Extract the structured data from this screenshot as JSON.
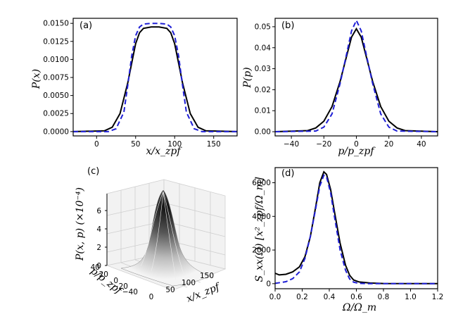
{
  "chart_data": [
    {
      "panel": "(a)",
      "type": "line",
      "xlabel": "x/x_zpf",
      "ylabel": "P(x)",
      "xlim": [
        -30,
        180
      ],
      "ylim": [
        -0.0006,
        0.0157
      ],
      "xticks": [
        "0",
        "50",
        "100",
        "150"
      ],
      "yticks": [
        "0.0000",
        "0.0025",
        "0.0050",
        "0.0075",
        "0.0100",
        "0.0125",
        "0.0150"
      ],
      "series": [
        {
          "style": "solid-black",
          "x": [
            -30,
            10,
            20,
            30,
            40,
            45,
            50,
            55,
            60,
            70,
            80,
            90,
            95,
            100,
            105,
            110,
            120,
            130,
            140,
            180
          ],
          "y": [
            0,
            0.0001,
            0.0006,
            0.0025,
            0.0068,
            0.0095,
            0.0122,
            0.0137,
            0.0143,
            0.0145,
            0.0145,
            0.0143,
            0.0137,
            0.0122,
            0.0095,
            0.0068,
            0.0025,
            0.0006,
            0.0001,
            0
          ]
        },
        {
          "style": "dashed-blue",
          "x": [
            -30,
            15,
            25,
            35,
            40,
            45,
            50,
            55,
            60,
            70,
            80,
            90,
            95,
            100,
            105,
            110,
            115,
            125,
            135,
            180
          ],
          "y": [
            0,
            0.0,
            0.0004,
            0.0027,
            0.0065,
            0.0105,
            0.0133,
            0.0145,
            0.0149,
            0.015,
            0.015,
            0.0149,
            0.0145,
            0.0133,
            0.0105,
            0.0065,
            0.0027,
            0.0004,
            0.0,
            0
          ]
        }
      ]
    },
    {
      "panel": "(b)",
      "type": "line",
      "xlabel": "p/p_zpf",
      "ylabel": "P(p)",
      "xlim": [
        -50,
        50
      ],
      "ylim": [
        -0.002,
        0.054
      ],
      "xticks": [
        "−40",
        "−20",
        "0",
        "20",
        "40"
      ],
      "yticks": [
        "0.00",
        "0.01",
        "0.02",
        "0.03",
        "0.04",
        "0.05"
      ],
      "series": [
        {
          "style": "solid-black",
          "x": [
            -50,
            -30,
            -25,
            -20,
            -15,
            -10,
            -6,
            -3,
            0,
            3,
            6,
            10,
            15,
            20,
            25,
            30,
            50
          ],
          "y": [
            0,
            0.0005,
            0.0018,
            0.005,
            0.012,
            0.024,
            0.036,
            0.045,
            0.049,
            0.045,
            0.036,
            0.024,
            0.012,
            0.005,
            0.0018,
            0.0005,
            0
          ]
        },
        {
          "style": "dashed-blue",
          "x": [
            -50,
            -25,
            -20,
            -15,
            -10,
            -6,
            -3,
            0,
            3,
            6,
            10,
            15,
            20,
            25,
            50
          ],
          "y": [
            0,
            0.0003,
            0.0022,
            0.0085,
            0.023,
            0.037,
            0.048,
            0.053,
            0.048,
            0.037,
            0.023,
            0.0085,
            0.0022,
            0.0003,
            0
          ]
        }
      ]
    },
    {
      "panel": "(c)",
      "type": "surface",
      "xlabel": "x/x_zpf",
      "ylabel": "p/p_zpf",
      "zlabel": "P(x, p) (×10⁻⁴)",
      "xticks": [
        "0",
        "50",
        "100",
        "150"
      ],
      "yticks": [
        "40",
        "20",
        "0",
        "−20",
        "−40"
      ],
      "zticks": [
        "0",
        "2",
        "4",
        "6"
      ],
      "zmax": 6.8
    },
    {
      "panel": "(d)",
      "type": "line",
      "xlabel": "Ω/Ω_m",
      "ylabel": "S_xx(Ω) [x²_zpf/Ω_m]",
      "xlim": [
        0,
        1.2
      ],
      "ylim": [
        -300,
        6900
      ],
      "xticks": [
        "0.0",
        "0.2",
        "0.4",
        "0.6",
        "0.8",
        "1.0",
        "1.2"
      ],
      "yticks": [
        "0",
        "2000",
        "4000",
        "6000"
      ],
      "series": [
        {
          "style": "solid-black",
          "x": [
            0,
            0.03,
            0.08,
            0.13,
            0.18,
            0.22,
            0.26,
            0.3,
            0.33,
            0.36,
            0.38,
            0.41,
            0.44,
            0.48,
            0.52,
            0.55,
            0.58,
            0.62,
            0.7,
            0.8,
            1.2
          ],
          "y": [
            620,
            520,
            560,
            700,
            1000,
            1600,
            2800,
            4600,
            6000,
            6650,
            6500,
            5600,
            4200,
            2400,
            1100,
            500,
            220,
            100,
            40,
            10,
            0
          ]
        },
        {
          "style": "dashed-blue",
          "x": [
            0,
            0.08,
            0.13,
            0.18,
            0.22,
            0.26,
            0.3,
            0.33,
            0.36,
            0.38,
            0.41,
            0.44,
            0.48,
            0.52,
            0.55,
            0.58,
            0.62,
            0.7,
            1.2
          ],
          "y": [
            20,
            120,
            300,
            700,
            1500,
            2800,
            4500,
            5800,
            6450,
            6350,
            5400,
            3900,
            2000,
            800,
            280,
            90,
            20,
            0,
            0
          ]
        }
      ]
    }
  ]
}
